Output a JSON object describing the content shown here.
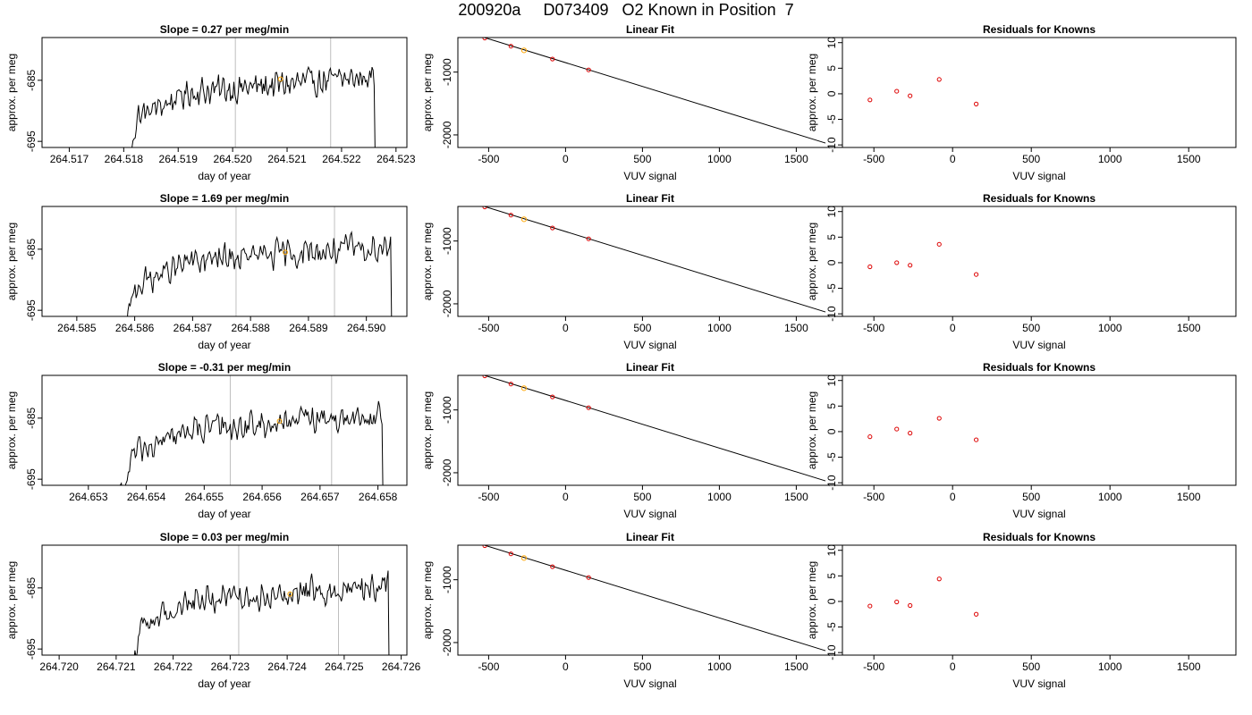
{
  "page_title": "200920a     D073409   O2 Known in Position  7",
  "colors": {
    "trace": "#000000",
    "marker_orange": "#FFA500",
    "marker_red": "#DD0000",
    "vline": "#BEBEBE",
    "axis": "#000000"
  },
  "chart_data": [
    {
      "type": "line",
      "title": "Slope =  0.27  per meg/min",
      "xlabel": "day of year",
      "ylabel": "approx. per meg",
      "xlim": [
        264.5165,
        264.5232
      ],
      "ylim": [
        -696,
        -678
      ],
      "xticks": [
        264.517,
        264.518,
        264.519,
        264.52,
        264.521,
        264.522,
        264.523
      ],
      "xticklabels": [
        "264.517",
        "264.518",
        "264.519",
        "264.520",
        "264.521",
        "264.522",
        "264.523"
      ],
      "yticks": [
        -695,
        -685
      ],
      "yticklabels": [
        "-695",
        "-685"
      ],
      "trace_start": 264.51805,
      "trace_end": 264.52268,
      "vlines": [
        264.52005,
        264.5218
      ],
      "highlight": {
        "x": 264.52088,
        "y": -684.8
      }
    },
    {
      "type": "scatter",
      "title": "Linear Fit",
      "xlabel": "VUV signal",
      "ylabel": "approx. per meg",
      "xlim": [
        -700,
        1800
      ],
      "ylim": [
        -2200,
        -450
      ],
      "xticks": [
        -500,
        0,
        500,
        1000,
        1500
      ],
      "xticklabels": [
        "-500",
        "0",
        "500",
        "1000",
        "1500"
      ],
      "yticks": [
        -2000,
        -1000
      ],
      "yticklabels": [
        "-2000",
        "-1000"
      ],
      "line": {
        "x": [
          -620,
          1690
        ],
        "y": [
          -380,
          -2130
        ]
      },
      "points": {
        "x": [
          -525,
          -355,
          -270,
          -85,
          150
        ],
        "y": [
          -458,
          -588,
          -654,
          -792,
          -965
        ]
      },
      "highlight_index": 2
    },
    {
      "type": "scatter",
      "title": "Residuals for Knowns",
      "xlabel": "VUV signal",
      "ylabel": "approx. per meg",
      "xlim": [
        -700,
        1800
      ],
      "ylim": [
        -10.5,
        11
      ],
      "xticks": [
        -500,
        0,
        500,
        1000,
        1500
      ],
      "xticklabels": [
        "-500",
        "0",
        "500",
        "1000",
        "1500"
      ],
      "yticks": [
        -10,
        -5,
        0,
        5,
        10
      ],
      "yticklabels": [
        "-10",
        "-5",
        "0",
        "5",
        "10"
      ],
      "points": {
        "x": [
          -525,
          -355,
          -270,
          -85,
          150
        ],
        "y": [
          -1.2,
          0.5,
          -0.4,
          2.8,
          -2.0
        ]
      }
    },
    {
      "type": "line",
      "title": "Slope =  1.69  per meg/min",
      "xlabel": "day of year",
      "ylabel": "approx. per meg",
      "xlim": [
        264.5844,
        264.5907
      ],
      "ylim": [
        -696,
        -678
      ],
      "xticks": [
        264.585,
        264.586,
        264.587,
        264.588,
        264.589,
        264.59
      ],
      "xticklabels": [
        "264.585",
        "264.586",
        "264.587",
        "264.588",
        "264.589",
        "264.590"
      ],
      "yticks": [
        -695,
        -685
      ],
      "yticklabels": [
        "-695",
        "-685"
      ],
      "trace_start": 264.5858,
      "trace_end": 264.5905,
      "vlines": [
        264.58775,
        264.58945
      ],
      "highlight": {
        "x": 264.5886,
        "y": -685.5
      }
    },
    {
      "type": "scatter",
      "title": "Linear Fit",
      "xlabel": "VUV signal",
      "ylabel": "approx. per meg",
      "xlim": [
        -700,
        1800
      ],
      "ylim": [
        -2200,
        -450
      ],
      "xticks": [
        -500,
        0,
        500,
        1000,
        1500
      ],
      "xticklabels": [
        "-500",
        "0",
        "500",
        "1000",
        "1500"
      ],
      "yticks": [
        -2000,
        -1000
      ],
      "yticklabels": [
        "-2000",
        "-1000"
      ],
      "line": {
        "x": [
          -620,
          1690
        ],
        "y": [
          -380,
          -2130
        ]
      },
      "points": {
        "x": [
          -525,
          -355,
          -270,
          -85,
          150
        ],
        "y": [
          -458,
          -588,
          -654,
          -792,
          -965
        ]
      },
      "highlight_index": 2
    },
    {
      "type": "scatter",
      "title": "Residuals for Knowns",
      "xlabel": "VUV signal",
      "ylabel": "approx. per meg",
      "xlim": [
        -700,
        1800
      ],
      "ylim": [
        -10.5,
        11
      ],
      "xticks": [
        -500,
        0,
        500,
        1000,
        1500
      ],
      "xticklabels": [
        "-500",
        "0",
        "500",
        "1000",
        "1500"
      ],
      "yticks": [
        -10,
        -5,
        0,
        5,
        10
      ],
      "yticklabels": [
        "-10",
        "-5",
        "0",
        "5",
        "10"
      ],
      "points": {
        "x": [
          -525,
          -355,
          -270,
          -85,
          150
        ],
        "y": [
          -0.8,
          0.0,
          -0.5,
          3.6,
          -2.3
        ]
      }
    },
    {
      "type": "line",
      "title": "Slope =  -0.31  per meg/min",
      "xlabel": "day of year",
      "ylabel": "approx. per meg",
      "xlim": [
        264.6522,
        264.6585
      ],
      "ylim": [
        -696,
        -678
      ],
      "xticks": [
        264.653,
        264.654,
        264.655,
        264.656,
        264.657,
        264.658
      ],
      "xticklabels": [
        "264.653",
        "264.654",
        "264.655",
        "264.656",
        "264.657",
        "264.658"
      ],
      "yticks": [
        -695,
        -685
      ],
      "yticklabels": [
        "-695",
        "-685"
      ],
      "trace_start": 264.65355,
      "trace_end": 264.65815,
      "vlines": [
        264.65545,
        264.6572
      ],
      "highlight": {
        "x": 264.6563,
        "y": -685.5
      }
    },
    {
      "type": "scatter",
      "title": "Linear Fit",
      "xlabel": "VUV signal",
      "ylabel": "approx. per meg",
      "xlim": [
        -700,
        1800
      ],
      "ylim": [
        -2200,
        -450
      ],
      "xticks": [
        -500,
        0,
        500,
        1000,
        1500
      ],
      "xticklabels": [
        "-500",
        "0",
        "500",
        "1000",
        "1500"
      ],
      "yticks": [
        -2000,
        -1000
      ],
      "yticklabels": [
        "-2000",
        "-1000"
      ],
      "line": {
        "x": [
          -620,
          1690
        ],
        "y": [
          -380,
          -2130
        ]
      },
      "points": {
        "x": [
          -525,
          -355,
          -270,
          -85,
          150
        ],
        "y": [
          -458,
          -588,
          -654,
          -792,
          -965
        ]
      },
      "highlight_index": 2
    },
    {
      "type": "scatter",
      "title": "Residuals for Knowns",
      "xlabel": "VUV signal",
      "ylabel": "approx. per meg",
      "xlim": [
        -700,
        1800
      ],
      "ylim": [
        -10.5,
        11
      ],
      "xticks": [
        -500,
        0,
        500,
        1000,
        1500
      ],
      "xticklabels": [
        "-500",
        "0",
        "500",
        "1000",
        "1500"
      ],
      "yticks": [
        -10,
        -5,
        0,
        5,
        10
      ],
      "yticklabels": [
        "-10",
        "-5",
        "0",
        "5",
        "10"
      ],
      "points": {
        "x": [
          -525,
          -355,
          -270,
          -85,
          150
        ],
        "y": [
          -1.0,
          0.5,
          -0.3,
          2.6,
          -1.6
        ]
      }
    },
    {
      "type": "line",
      "title": "Slope =  0.03  per meg/min",
      "xlabel": "day of year",
      "ylabel": "approx. per meg",
      "xlim": [
        264.7197,
        264.7261
      ],
      "ylim": [
        -696,
        -678
      ],
      "xticks": [
        264.72,
        264.721,
        264.722,
        264.723,
        264.724,
        264.725,
        264.726
      ],
      "xticklabels": [
        "264.720",
        "264.721",
        "264.722",
        "264.723",
        "264.724",
        "264.725",
        "264.726"
      ],
      "yticks": [
        -695,
        -685
      ],
      "yticklabels": [
        "-695",
        "-685"
      ],
      "trace_start": 264.72125,
      "trace_end": 264.72585,
      "vlines": [
        264.72315,
        264.7249
      ],
      "highlight": {
        "x": 264.72405,
        "y": -686.0
      }
    },
    {
      "type": "scatter",
      "title": "Linear Fit",
      "xlabel": "VUV signal",
      "ylabel": "approx. per meg",
      "xlim": [
        -700,
        1800
      ],
      "ylim": [
        -2200,
        -450
      ],
      "xticks": [
        -500,
        0,
        500,
        1000,
        1500
      ],
      "xticklabels": [
        "-500",
        "0",
        "500",
        "1000",
        "1500"
      ],
      "yticks": [
        -2000,
        -1000
      ],
      "yticklabels": [
        "-2000",
        "-1000"
      ],
      "line": {
        "x": [
          -620,
          1690
        ],
        "y": [
          -380,
          -2130
        ]
      },
      "points": {
        "x": [
          -525,
          -355,
          -270,
          -85,
          150
        ],
        "y": [
          -458,
          -588,
          -654,
          -792,
          -965
        ]
      },
      "highlight_index": 2
    },
    {
      "type": "scatter",
      "title": "Residuals for Knowns",
      "xlabel": "VUV signal",
      "ylabel": "approx. per meg",
      "xlim": [
        -700,
        1800
      ],
      "ylim": [
        -10.5,
        11
      ],
      "xticks": [
        -500,
        0,
        500,
        1000,
        1500
      ],
      "xticklabels": [
        "-500",
        "0",
        "500",
        "1000",
        "1500"
      ],
      "yticks": [
        -10,
        -5,
        0,
        5,
        10
      ],
      "yticklabels": [
        "-10",
        "-5",
        "0",
        "5",
        "10"
      ],
      "points": {
        "x": [
          -525,
          -355,
          -270,
          -85,
          150
        ],
        "y": [
          -0.9,
          -0.1,
          -0.8,
          4.4,
          -2.5
        ]
      }
    }
  ]
}
